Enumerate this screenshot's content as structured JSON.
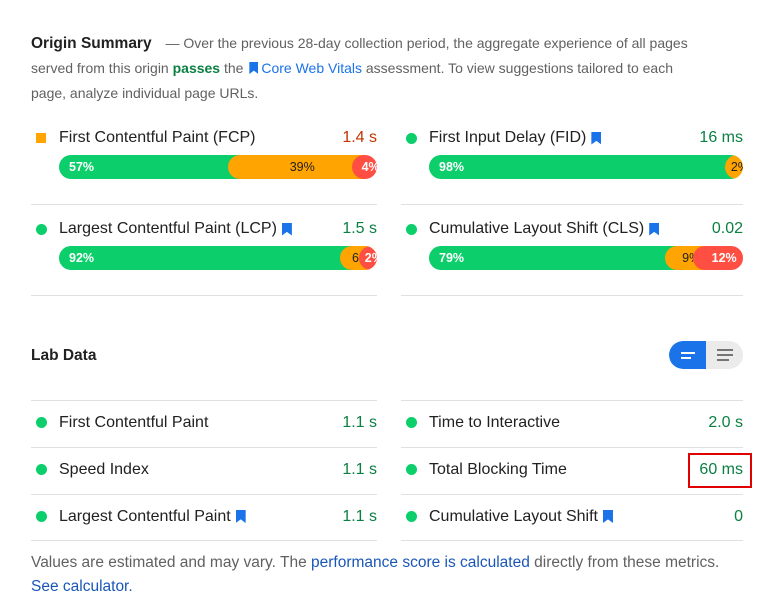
{
  "origin_summary": {
    "title": "Origin Summary",
    "text_1": "— Over the previous 28-day collection period, the aggregate experience of all pages served from this origin",
    "passes": "passes",
    "text_2": "the",
    "cwv_link": "Core Web Vitals",
    "text_3": "assessment. To view suggestions tailored to each page, analyze individual page URLs.",
    "metrics": [
      {
        "label": "First Contentful Paint (FCP)",
        "value": "1.4 s",
        "status": "average",
        "bookmark": false,
        "distribution": {
          "good": "57%",
          "average": "39%",
          "poor": "4%"
        },
        "fractions": [
          0.57,
          0.39,
          0.04
        ]
      },
      {
        "label": "First Input Delay (FID)",
        "value": "16 ms",
        "status": "good",
        "bookmark": true,
        "distribution": {
          "good": "98%",
          "average": "2%",
          "poor": ""
        },
        "fractions": [
          0.98,
          0.02,
          0
        ]
      },
      {
        "label": "Largest Contentful Paint (LCP)",
        "value": "1.5 s",
        "status": "good",
        "bookmark": true,
        "distribution": {
          "good": "92%",
          "average": "6%",
          "poor": "2%"
        },
        "fractions": [
          0.92,
          0.06,
          0.02
        ]
      },
      {
        "label": "Cumulative Layout Shift (CLS)",
        "value": "0.02",
        "status": "good",
        "bookmark": true,
        "distribution": {
          "good": "79%",
          "average": "9%",
          "poor": "12%"
        },
        "fractions": [
          0.79,
          0.09,
          0.12
        ]
      }
    ]
  },
  "lab_data": {
    "title": "Lab Data",
    "metrics": [
      {
        "label": "First Contentful Paint",
        "value": "1.1 s",
        "bookmark": false
      },
      {
        "label": "Time to Interactive",
        "value": "2.0 s",
        "bookmark": false
      },
      {
        "label": "Speed Index",
        "value": "1.1 s",
        "bookmark": false
      },
      {
        "label": "Total Blocking Time",
        "value": "60 ms",
        "bookmark": false
      },
      {
        "label": "Largest Contentful Paint",
        "value": "1.1 s",
        "bookmark": true
      },
      {
        "label": "Cumulative Layout Shift",
        "value": "0",
        "bookmark": true
      }
    ]
  },
  "footer": {
    "text_1": "Values are estimated and may vary. The",
    "link_1": "performance score is calculated",
    "text_2": "directly from these metrics.",
    "link_2": "See calculator."
  },
  "colors": {
    "good": "#0cce6b",
    "average": "#ffa400",
    "poor": "#ff4e42",
    "accent": "#1a73e8",
    "highlight": "#e00000"
  }
}
